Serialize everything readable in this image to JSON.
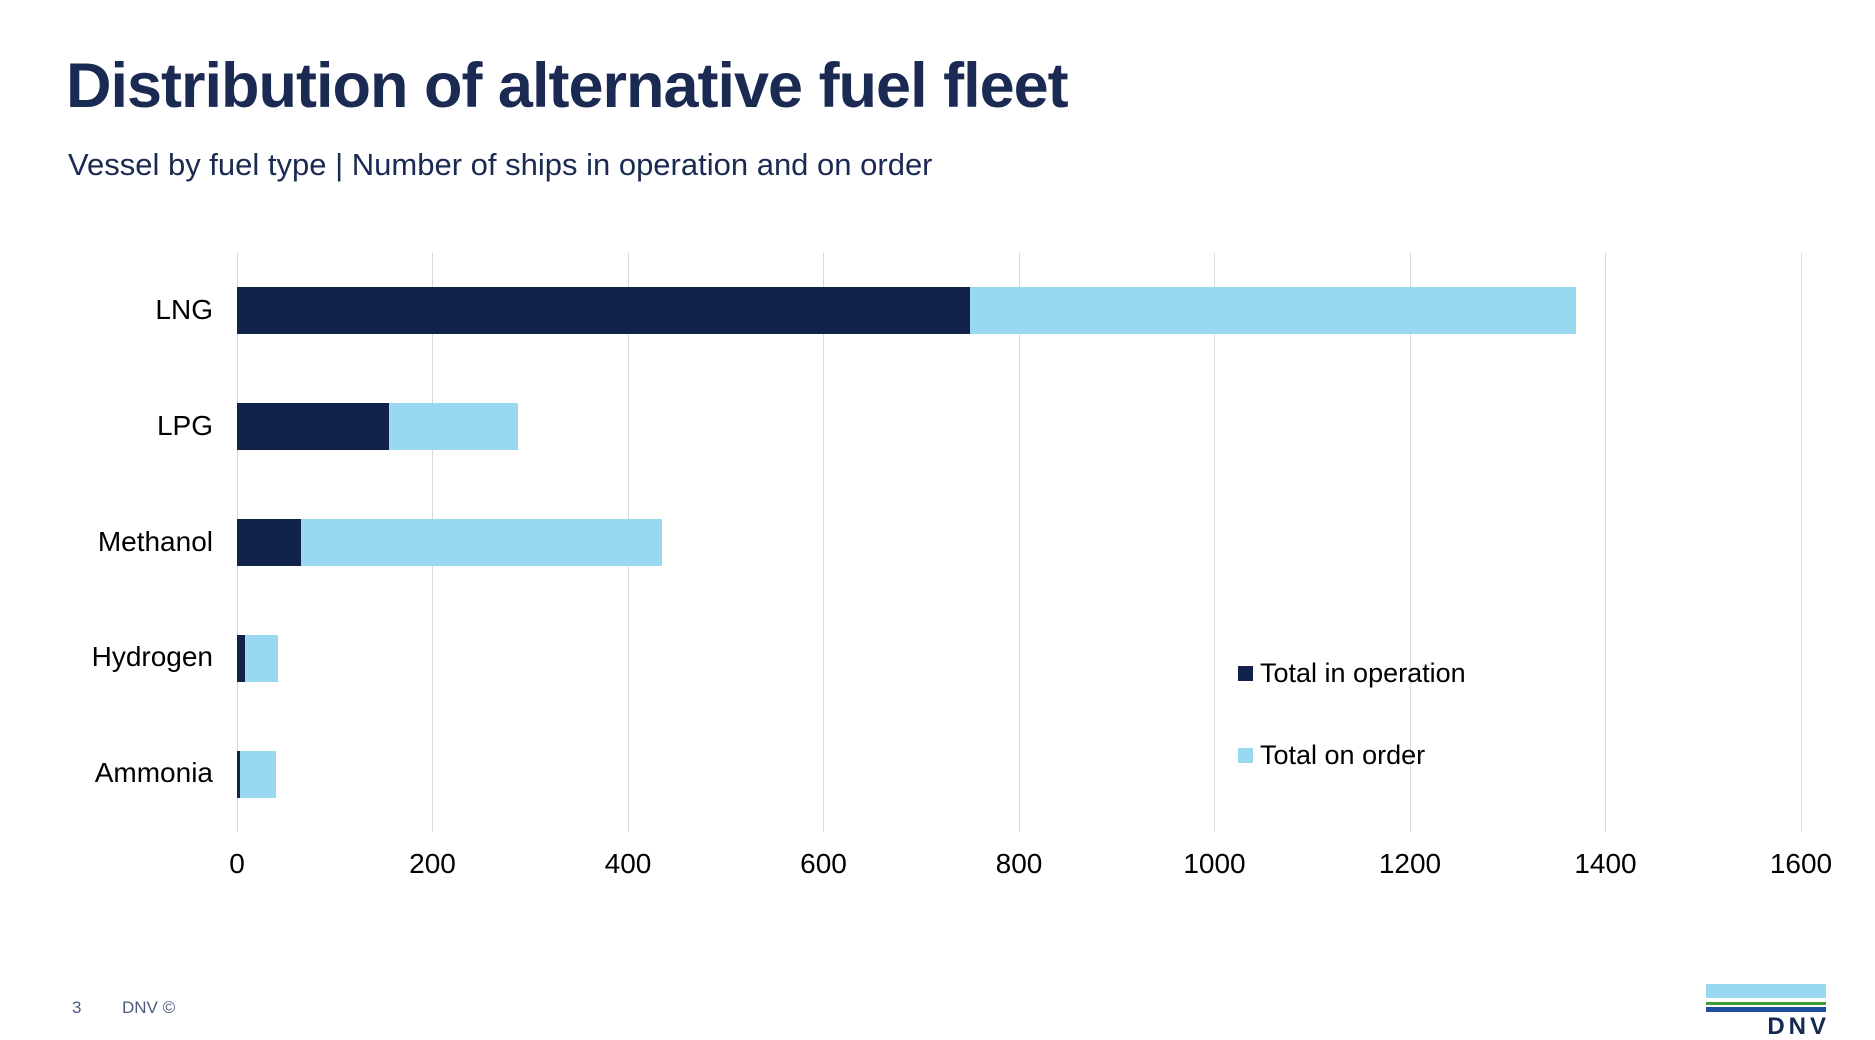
{
  "slide": {
    "title": "Distribution of alternative fuel fleet",
    "subtitle": "Vessel by fuel type | Number of ships in operation and on order",
    "page_number": "3",
    "copyright": "DNV ©",
    "logo_text": "DNV"
  },
  "colors": {
    "title_text": "#1A2A52",
    "subtitle_text": "#1A2A52",
    "operation_bar": "#12234A",
    "order_bar": "#99D9F0",
    "gridline": "#D9D9D9",
    "axis_text": "#000000",
    "footer_text": "#4D5C80",
    "logo_sky": "#99D9F0",
    "logo_green": "#3F9C35",
    "logo_blue": "#1F4DA0",
    "logo_text": "#16294F"
  },
  "chart_data": {
    "type": "bar",
    "orientation": "horizontal",
    "stacked": true,
    "title": "Distribution of alternative fuel fleet",
    "subtitle": "Vessel by fuel type | Number of ships in operation and on order",
    "categories": [
      "LNG",
      "LPG",
      "Methanol",
      "Hydrogen",
      "Ammonia"
    ],
    "series": [
      {
        "name": "Total in operation",
        "color": "#12234A",
        "values": [
          750,
          155,
          65,
          8,
          3
        ]
      },
      {
        "name": "Total on order",
        "color": "#99D9F0",
        "values": [
          620,
          132,
          370,
          34,
          37
        ]
      }
    ],
    "totals": [
      1370,
      287,
      435,
      42,
      40
    ],
    "xlabel": "",
    "ylabel": "",
    "xlim": [
      0,
      1600
    ],
    "xticks": [
      0,
      200,
      400,
      600,
      800,
      1000,
      1200,
      1400,
      1600
    ],
    "grid": "vertical-only",
    "legend_position": "right-middle"
  }
}
